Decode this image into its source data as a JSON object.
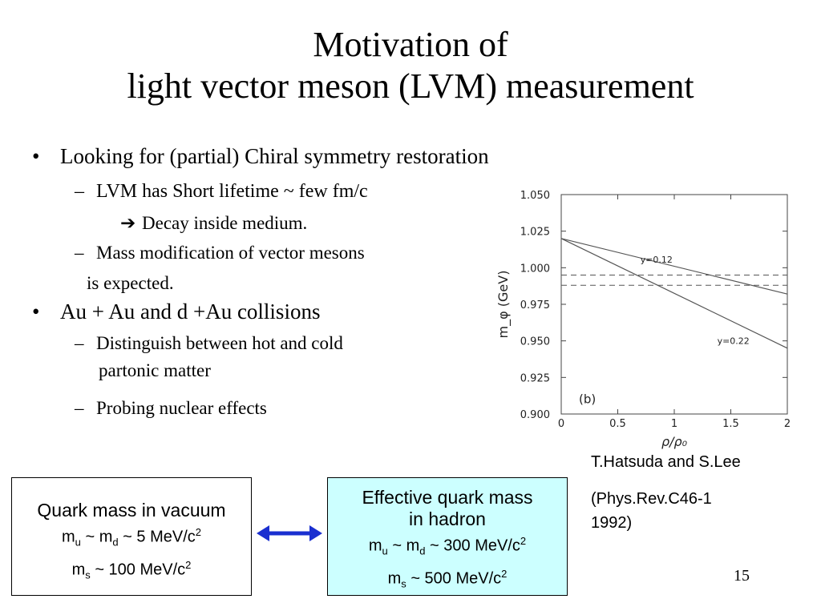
{
  "slide": {
    "title_line1": "Motivation of",
    "title_line2": "light vector meson (LVM) measurement",
    "page_number": "15"
  },
  "bullets": [
    {
      "marker": "•",
      "text": "Looking for (partial) Chiral symmetry restoration",
      "subs": [
        {
          "marker": "–",
          "text": "LVM has Short lifetime ~ few fm/c"
        },
        {
          "arrow": "➔",
          "text": "Decay inside medium."
        },
        {
          "marker": "–",
          "text": "Mass modification of vector mesons",
          "cont": "is expected."
        }
      ]
    },
    {
      "marker": "•",
      "text": "Au + Au and d +Au collisions",
      "subs": [
        {
          "marker": "–",
          "text": "Distinguish between hot and cold",
          "cont": "partonic matter"
        },
        {
          "marker": "–",
          "text": "Probing nuclear effects"
        }
      ]
    }
  ],
  "box_vacuum": {
    "title": "Quark mass in vacuum",
    "line1_prefix": "m",
    "line1_sub_u": "u",
    "line1_mid": " ~ m",
    "line1_sub_d": "d",
    "line1_suffix": " ~ 5 MeV/c",
    "line1_sup": "2",
    "line2_prefix": "m",
    "line2_sub": "s",
    "line2_suffix": " ~ 100 MeV/c",
    "line2_sup": "2"
  },
  "box_hadron": {
    "title1": "Effective quark mass",
    "title2": "in hadron",
    "line1_prefix": "m",
    "line1_sub_u": "u",
    "line1_mid": " ~ m",
    "line1_sub_d": "d",
    "line1_suffix": " ~ 300 MeV/c",
    "line1_sup": "2",
    "line2_prefix": "m",
    "line2_sub": "s",
    "line2_suffix": " ~ 500 MeV/c",
    "line2_sup": "2"
  },
  "citation": {
    "line1": "T.Hatsuda and S.Lee",
    "line2": "(Phys.Rev.C46-1",
    "line3": "1992)"
  },
  "colors": {
    "arrow": "#1a2fd0",
    "box_hadron_bg": "#ccffff",
    "chart_line": "#555555"
  },
  "chart_data": {
    "type": "line",
    "ylabel": "m_φ (GeV)",
    "xlabel": "ρ/ρ₀",
    "panel_label": "(b)",
    "xlim": [
      0,
      2
    ],
    "ylim": [
      0.9,
      1.05
    ],
    "x_ticks": [
      "0",
      "0.5",
      "1",
      "1.5",
      "2"
    ],
    "y_ticks": [
      "0.900",
      "0.925",
      "0.950",
      "0.975",
      "1.000",
      "1.025",
      "1.050"
    ],
    "series": [
      {
        "name": "y=0.12",
        "x": [
          0,
          2
        ],
        "y": [
          1.02,
          0.982
        ],
        "style": "solid"
      },
      {
        "name": "y=0.22",
        "x": [
          0,
          2
        ],
        "y": [
          1.02,
          0.945
        ],
        "style": "solid"
      }
    ],
    "reference_lines": [
      {
        "y": 0.995,
        "style": "dashed"
      },
      {
        "y": 0.988,
        "style": "dashed"
      }
    ],
    "grid": false
  }
}
